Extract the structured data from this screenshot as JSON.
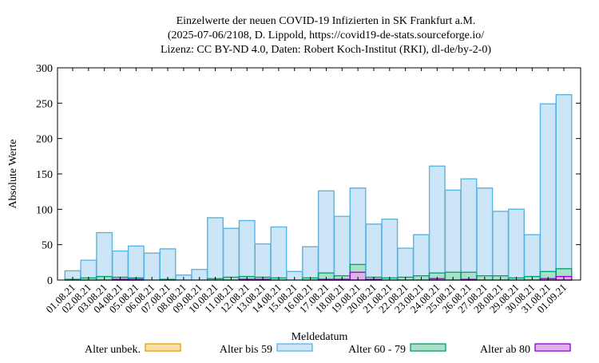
{
  "chart_data": {
    "type": "bar",
    "stacked": true,
    "title": [
      "Einzelwerte der neuen COVID-19 Infizierten in SK Frankfurt a.M.",
      "(2025-07-06/2108, D. Lippold, https://covid19-de-stats.sourceforge.io/",
      "Lizenz: CC BY-ND 4.0, Daten: Robert Koch-Institut (RKI), dl-de/by-2-0)"
    ],
    "xlabel": "Meldedatum",
    "ylabel": "Absolute Werte",
    "ylim": [
      0,
      300
    ],
    "yticks": [
      0,
      50,
      100,
      150,
      200,
      250,
      300
    ],
    "grid": false,
    "legend": "bottom",
    "categories": [
      "01.08.21",
      "02.08.21",
      "03.08.21",
      "04.08.21",
      "05.08.21",
      "06.08.21",
      "07.08.21",
      "08.08.21",
      "09.08.21",
      "10.08.21",
      "11.08.21",
      "12.08.21",
      "13.08.21",
      "14.08.21",
      "15.08.21",
      "16.08.21",
      "17.08.21",
      "18.08.21",
      "19.08.21",
      "20.08.21",
      "21.08.21",
      "22.08.21",
      "23.08.21",
      "24.08.21",
      "25.08.21",
      "26.08.21",
      "27.08.21",
      "28.08.21",
      "29.08.21",
      "30.08.21",
      "31.08.21",
      "01.09.21"
    ],
    "series": [
      {
        "name": "Alter ab 80",
        "color": "#e0b0f0",
        "stroke": "#9400d3",
        "values": [
          0,
          0,
          0,
          1,
          1,
          0,
          0,
          0,
          0,
          0,
          0,
          1,
          1,
          0,
          0,
          0,
          1,
          1,
          11,
          1,
          0,
          0,
          0,
          2,
          0,
          1,
          0,
          0,
          0,
          0,
          2,
          5
        ]
      },
      {
        "name": "Alter 60 - 79",
        "color": "#a8e0c8",
        "stroke": "#009e73",
        "values": [
          1,
          3,
          5,
          3,
          2,
          0,
          1,
          0,
          0,
          2,
          4,
          4,
          3,
          3,
          0,
          3,
          9,
          5,
          11,
          3,
          3,
          4,
          6,
          8,
          11,
          10,
          6,
          6,
          3,
          5,
          10,
          11
        ]
      },
      {
        "name": "Alter bis 59",
        "color": "#cce6f8",
        "stroke": "#56b4e9",
        "values": [
          12,
          25,
          62,
          37,
          45,
          38,
          43,
          7,
          15,
          86,
          69,
          79,
          47,
          72,
          12,
          44,
          116,
          84,
          108,
          75,
          83,
          41,
          58,
          151,
          116,
          132,
          124,
          91,
          97,
          59,
          237,
          246
        ]
      },
      {
        "name": "Alter unbek.",
        "color": "#f8e0a0",
        "stroke": "#e69f00",
        "values": [
          0,
          0,
          0,
          0,
          0,
          0,
          0,
          0,
          0,
          0,
          0,
          0,
          0,
          0,
          0,
          0,
          0,
          0,
          0,
          0,
          0,
          0,
          0,
          0,
          0,
          0,
          0,
          0,
          0,
          0,
          0,
          0
        ]
      }
    ]
  }
}
